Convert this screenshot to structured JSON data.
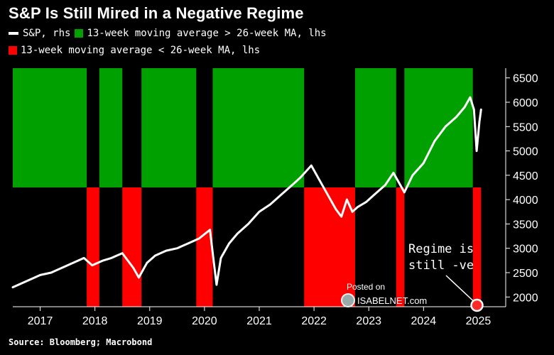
{
  "title": "S&P Is Still Mired in a Negative Regime",
  "legend": {
    "sp_label": "S&P, rhs",
    "green_label": "13-week moving average > 26-week MA, lhs",
    "red_label": "13-week moving average < 26-week MA, lhs"
  },
  "colors": {
    "green": "#00a000",
    "red": "#ff0000",
    "line": "#ffffff",
    "background": "#000000"
  },
  "annotation": {
    "line1": "Regime is",
    "line2": "still -ve"
  },
  "watermark": {
    "posted_on": "Posted on",
    "site": "ISABELNET.com"
  },
  "source": "Source: Bloomberg; Macrobond",
  "chart_data": {
    "type": "area",
    "title": "S&P Is Still Mired in a Negative Regime",
    "x_range": [
      2016.5,
      2025.5
    ],
    "x_ticks": [
      2017,
      2018,
      2019,
      2020,
      2021,
      2022,
      2023,
      2024,
      2025
    ],
    "x_tick_labels": [
      "2017",
      "2018",
      "2019",
      "2020",
      "2021",
      "2022",
      "2023",
      "2024",
      "2025"
    ],
    "y_range": [
      1800,
      6700
    ],
    "y_ticks": [
      2000,
      2500,
      3000,
      3500,
      4000,
      4500,
      5000,
      5500,
      6000,
      6500
    ],
    "y_tick_labels": [
      "2000",
      "2500",
      "3000",
      "3500",
      "4000",
      "4500",
      "5000",
      "5500",
      "6000",
      "6500"
    ],
    "regimes": [
      {
        "regime": "positive",
        "start": 2016.5,
        "end": 2017.85
      },
      {
        "regime": "negative",
        "start": 2017.85,
        "end": 2018.08
      },
      {
        "regime": "positive",
        "start": 2018.08,
        "end": 2018.5
      },
      {
        "regime": "negative",
        "start": 2018.5,
        "end": 2018.85
      },
      {
        "regime": "positive",
        "start": 2018.85,
        "end": 2019.85
      },
      {
        "regime": "negative",
        "start": 2019.85,
        "end": 2020.15
      },
      {
        "regime": "positive",
        "start": 2020.15,
        "end": 2021.82
      },
      {
        "regime": "negative",
        "start": 2021.82,
        "end": 2022.75
      },
      {
        "regime": "positive",
        "start": 2022.75,
        "end": 2023.5
      },
      {
        "regime": "negative",
        "start": 2023.5,
        "end": 2023.65
      },
      {
        "regime": "positive",
        "start": 2023.65,
        "end": 2024.9
      },
      {
        "regime": "negative",
        "start": 2024.9,
        "end": 2025.05
      }
    ],
    "series": [
      {
        "name": "S&P, rhs",
        "x": [
          2016.5,
          2016.7,
          2016.9,
          2017.0,
          2017.2,
          2017.4,
          2017.6,
          2017.8,
          2017.95,
          2018.05,
          2018.15,
          2018.3,
          2018.5,
          2018.7,
          2018.8,
          2018.95,
          2019.1,
          2019.3,
          2019.5,
          2019.7,
          2019.9,
          2020.1,
          2020.15,
          2020.22,
          2020.3,
          2020.45,
          2020.6,
          2020.8,
          2021.0,
          2021.2,
          2021.4,
          2021.6,
          2021.75,
          2021.95,
          2022.1,
          2022.25,
          2022.4,
          2022.5,
          2022.6,
          2022.7,
          2022.8,
          2022.95,
          2023.1,
          2023.3,
          2023.45,
          2023.55,
          2023.65,
          2023.8,
          2024.0,
          2024.2,
          2024.4,
          2024.6,
          2024.75,
          2024.85,
          2024.92,
          2024.97,
          2025.02,
          2025.05
        ],
        "y": [
          2200,
          2300,
          2400,
          2450,
          2500,
          2600,
          2700,
          2800,
          2650,
          2700,
          2750,
          2800,
          2900,
          2600,
          2400,
          2700,
          2850,
          2950,
          3000,
          3100,
          3200,
          3380,
          2900,
          2250,
          2800,
          3100,
          3300,
          3500,
          3750,
          3900,
          4100,
          4300,
          4450,
          4700,
          4400,
          4100,
          3800,
          3650,
          4000,
          3750,
          3850,
          3950,
          4100,
          4300,
          4550,
          4350,
          4150,
          4500,
          4750,
          5200,
          5500,
          5700,
          5900,
          6100,
          5850,
          5000,
          5600,
          5850
        ]
      }
    ]
  }
}
